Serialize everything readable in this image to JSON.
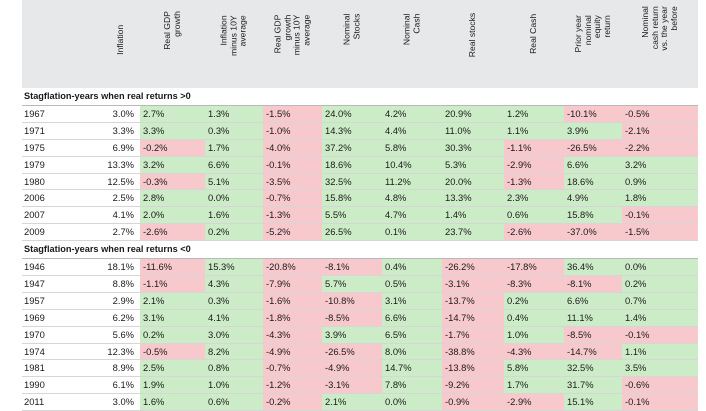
{
  "colors": {
    "positive_fill": "#ccebc7",
    "negative_fill": "#f7c9cc",
    "header_fill": "#e7e8ea"
  },
  "chart_data": {
    "type": "table",
    "columns": [
      "Inflation",
      "Real GDP\ngrowth",
      "Inflation\nminus 10Y\naverage",
      "Real GDP\ngrowth\nminus 10Y\naverage",
      "Nominal\nStocks",
      "Nominal\nCash",
      "Real stocks",
      "Real Cash",
      "Prior year\nnominal\nequity\nreturn",
      "Nominal\ncash return\nvs. the year\nbefore"
    ],
    "sections": [
      {
        "title": "Stagflation-years when real returns >0",
        "rows": [
          {
            "year": "1967",
            "values": [
              "3.0%",
              "2.7%",
              "1.3%",
              "-1.5%",
              "24.0%",
              "4.2%",
              "20.9%",
              "1.2%",
              "-10.1%",
              "-0.5%"
            ]
          },
          {
            "year": "1971",
            "values": [
              "3.3%",
              "3.3%",
              "0.3%",
              "-1.0%",
              "14.3%",
              "4.4%",
              "11.0%",
              "1.1%",
              "3.9%",
              "-2.1%"
            ]
          },
          {
            "year": "1975",
            "values": [
              "6.9%",
              "-0.2%",
              "1.7%",
              "-4.0%",
              "37.2%",
              "5.8%",
              "30.3%",
              "-1.1%",
              "-26.5%",
              "-2.2%"
            ]
          },
          {
            "year": "1979",
            "values": [
              "13.3%",
              "3.2%",
              "6.6%",
              "-0.1%",
              "18.6%",
              "10.4%",
              "5.3%",
              "-2.9%",
              "6.6%",
              "3.2%"
            ]
          },
          {
            "year": "1980",
            "values": [
              "12.5%",
              "-0.3%",
              "5.1%",
              "-3.5%",
              "32.5%",
              "11.2%",
              "20.0%",
              "-1.3%",
              "18.6%",
              "0.9%"
            ]
          },
          {
            "year": "2006",
            "values": [
              "2.5%",
              "2.8%",
              "0.0%",
              "-0.7%",
              "15.8%",
              "4.8%",
              "13.3%",
              "2.3%",
              "4.9%",
              "1.8%"
            ]
          },
          {
            "year": "2007",
            "values": [
              "4.1%",
              "2.0%",
              "1.6%",
              "-1.3%",
              "5.5%",
              "4.7%",
              "1.4%",
              "0.6%",
              "15.8%",
              "-0.1%"
            ]
          },
          {
            "year": "2009",
            "values": [
              "2.7%",
              "-2.6%",
              "0.2%",
              "-5.2%",
              "26.5%",
              "0.1%",
              "23.7%",
              "-2.6%",
              "-37.0%",
              "-1.5%"
            ]
          }
        ]
      },
      {
        "title": "Stagflation-years when real returns <0",
        "rows": [
          {
            "year": "1946",
            "values": [
              "18.1%",
              "-11.6%",
              "15.3%",
              "-20.8%",
              "-8.1%",
              "0.4%",
              "-26.2%",
              "-17.8%",
              "36.4%",
              "0.0%"
            ]
          },
          {
            "year": "1947",
            "values": [
              "8.8%",
              "-1.1%",
              "4.3%",
              "-7.9%",
              "5.7%",
              "0.5%",
              "-3.1%",
              "-8.3%",
              "-8.1%",
              "0.2%"
            ]
          },
          {
            "year": "1957",
            "values": [
              "2.9%",
              "2.1%",
              "0.3%",
              "-1.6%",
              "-10.8%",
              "3.1%",
              "-13.7%",
              "0.2%",
              "6.6%",
              "0.7%"
            ]
          },
          {
            "year": "1969",
            "values": [
              "6.2%",
              "3.1%",
              "4.1%",
              "-1.8%",
              "-8.5%",
              "6.6%",
              "-14.7%",
              "0.4%",
              "11.1%",
              "1.4%"
            ]
          },
          {
            "year": "1970",
            "values": [
              "5.6%",
              "0.2%",
              "3.0%",
              "-4.3%",
              "3.9%",
              "6.5%",
              "-1.7%",
              "1.0%",
              "-8.5%",
              "-0.1%"
            ]
          },
          {
            "year": "1974",
            "values": [
              "12.3%",
              "-0.5%",
              "8.2%",
              "-4.9%",
              "-26.5%",
              "8.0%",
              "-38.8%",
              "-4.3%",
              "-14.7%",
              "1.1%"
            ]
          },
          {
            "year": "1981",
            "values": [
              "8.9%",
              "2.5%",
              "0.8%",
              "-0.7%",
              "-4.9%",
              "14.7%",
              "-13.8%",
              "5.8%",
              "32.5%",
              "3.5%"
            ]
          },
          {
            "year": "1990",
            "values": [
              "6.1%",
              "1.9%",
              "1.0%",
              "-1.2%",
              "-3.1%",
              "7.8%",
              "-9.2%",
              "1.7%",
              "31.7%",
              "-0.6%"
            ]
          },
          {
            "year": "2011",
            "values": [
              "3.0%",
              "1.6%",
              "0.6%",
              "-0.2%",
              "2.1%",
              "0.0%",
              "-0.9%",
              "-2.9%",
              "15.1%",
              "-0.1%"
            ]
          }
        ]
      }
    ]
  }
}
